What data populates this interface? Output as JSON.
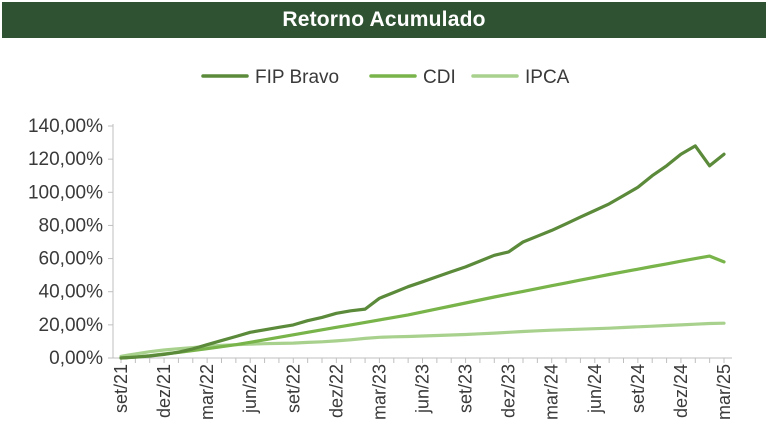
{
  "header": {
    "title": "Retorno Acumulado"
  },
  "colors": {
    "title_bar": "#2f5233",
    "fip_bravo": "#5b8a3a",
    "cdi": "#78b44a",
    "ipca": "#a9d18e"
  },
  "chart_data": {
    "type": "line",
    "title": "Retorno Acumulado",
    "xlabel": "",
    "ylabel": "",
    "ylim": [
      0,
      140
    ],
    "yticks": [
      "0,00%",
      "20,00%",
      "40,00%",
      "60,00%",
      "80,00%",
      "100,00%",
      "120,00%",
      "140,00%"
    ],
    "ytick_values": [
      0,
      20,
      40,
      60,
      80,
      100,
      120,
      140
    ],
    "x_ticks": [
      "set/21",
      "dez/21",
      "mar/22",
      "jun/22",
      "set/22",
      "dez/22",
      "mar/23",
      "jun/23",
      "set/23",
      "dez/23",
      "mar/24",
      "jun/24",
      "set/24",
      "dez/24",
      "mar/25"
    ],
    "x": [
      0,
      1,
      2,
      3,
      4,
      5,
      6,
      7,
      8,
      9,
      10,
      11,
      12,
      13,
      14,
      15,
      16,
      17,
      18,
      19,
      20,
      21,
      22,
      23,
      24,
      25,
      26,
      27,
      28,
      29,
      30,
      31,
      32,
      33,
      34,
      35,
      36,
      37,
      38,
      39,
      40,
      41,
      42
    ],
    "legend_position": "top-center",
    "grid": false,
    "series": [
      {
        "name": "FIP Bravo",
        "color": "#5b8a3a",
        "values": [
          0,
          0.5,
          1.2,
          2.2,
          3.5,
          5.5,
          8,
          10.5,
          13,
          15.5,
          17,
          18.5,
          20,
          22.5,
          24.5,
          27,
          28.5,
          29.5,
          36,
          39.5,
          43,
          46,
          49,
          52,
          55,
          58.5,
          62,
          64,
          70,
          73.5,
          77,
          81,
          85,
          89,
          93,
          98,
          103,
          110,
          116,
          123,
          128,
          116,
          123
        ]
      },
      {
        "name": "CDI",
        "color": "#78b44a",
        "values": [
          0,
          0.6,
          1.4,
          2.4,
          3.4,
          4.5,
          5.6,
          6.8,
          8,
          9.5,
          11,
          12.5,
          14,
          15.5,
          17,
          18.5,
          20,
          21.5,
          23,
          24.5,
          26,
          27.8,
          29.6,
          31.4,
          33.2,
          35,
          36.8,
          38.5,
          40.2,
          41.9,
          43.6,
          45.3,
          47,
          48.7,
          50.4,
          52,
          53.6,
          55.2,
          56.8,
          58.4,
          60,
          61.5,
          58
        ]
      },
      {
        "name": "IPCA",
        "color": "#a9d18e",
        "values": [
          1,
          2.5,
          3.8,
          4.8,
          5.6,
          6.3,
          7,
          7.6,
          8,
          8.3,
          8.6,
          8.8,
          9,
          9.4,
          9.8,
          10.3,
          11,
          11.8,
          12.5,
          12.8,
          13,
          13.3,
          13.6,
          13.9,
          14.2,
          14.6,
          15,
          15.5,
          16,
          16.4,
          16.8,
          17.1,
          17.4,
          17.7,
          18,
          18.4,
          18.8,
          19.2,
          19.6,
          20,
          20.4,
          20.8,
          21
        ]
      }
    ]
  }
}
